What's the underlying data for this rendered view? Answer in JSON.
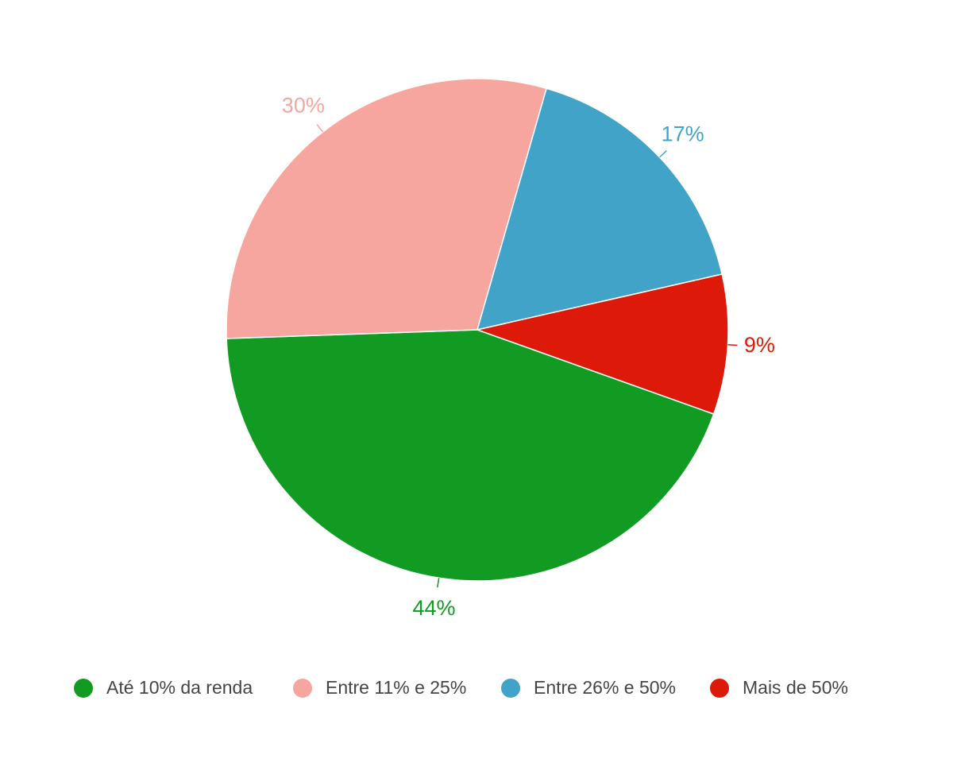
{
  "chart_data": {
    "type": "pie",
    "categories": [
      "Até 10% da renda",
      "Entre 11% e 25%",
      "Entre 26% e 50%",
      "Mais de 50%"
    ],
    "values": [
      44,
      30,
      17,
      9
    ],
    "value_labels": [
      "44%",
      "30%",
      "17%",
      "9%"
    ],
    "colors": [
      "#129b23",
      "#f7a69f",
      "#42a3c8",
      "#dd1a0a"
    ],
    "legend": "bottom"
  }
}
